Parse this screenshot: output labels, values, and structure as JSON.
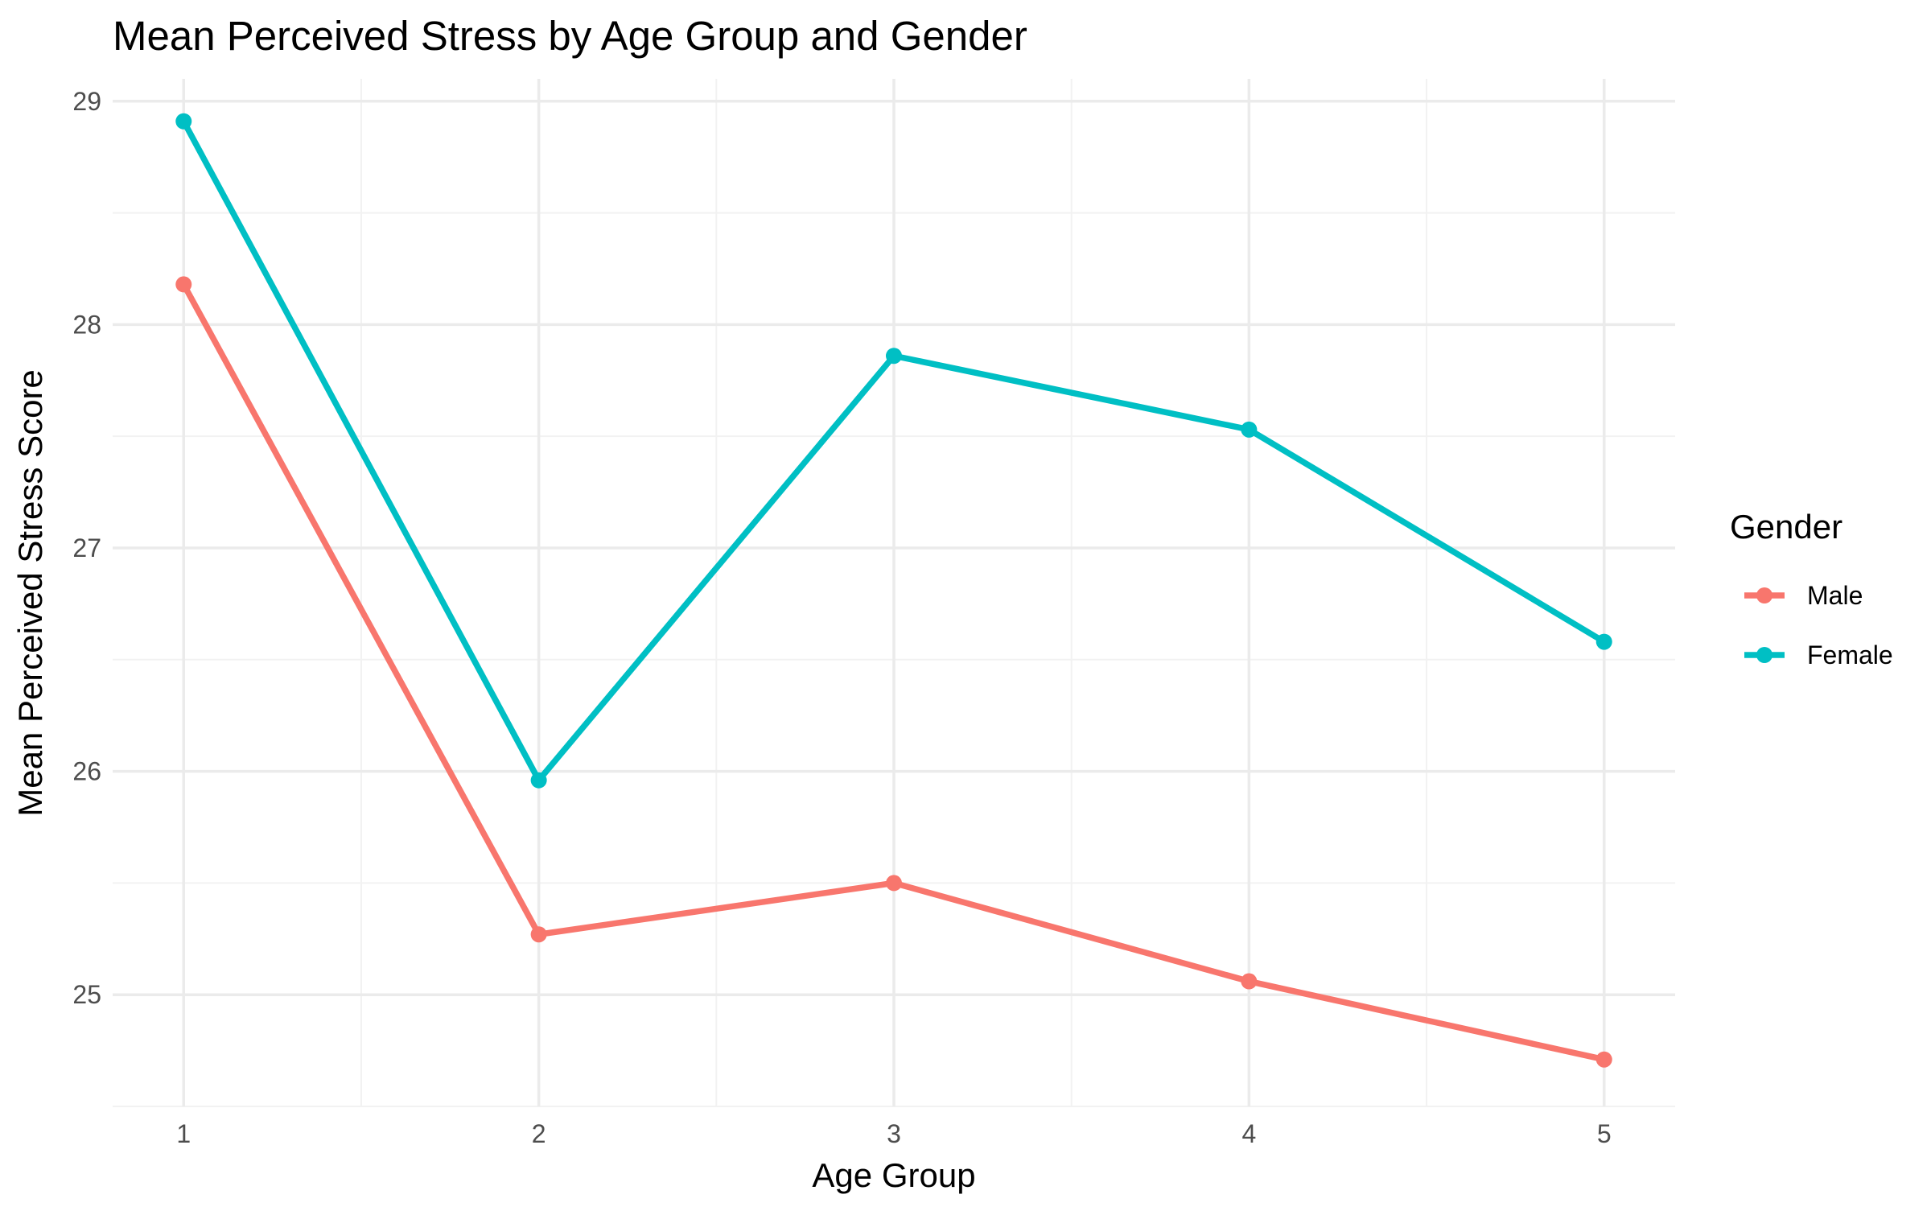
{
  "chart_data": {
    "type": "line",
    "title": "Mean Perceived Stress by Age Group and Gender",
    "xlabel": "Age Group",
    "ylabel": "Mean Perceived Stress Score",
    "x": [
      1,
      2,
      3,
      4,
      5
    ],
    "x_tick_labels": [
      "1",
      "2",
      "3",
      "4",
      "5"
    ],
    "y_ticks": [
      25,
      26,
      27,
      28,
      29
    ],
    "y_tick_labels": [
      "25",
      "26",
      "27",
      "28",
      "29"
    ],
    "xlim": [
      0.8,
      5.2
    ],
    "ylim": [
      24.5,
      29.1
    ],
    "grid": true,
    "legend": {
      "title": "Gender",
      "position": "right"
    },
    "series": [
      {
        "name": "Male",
        "color": "#F8766D",
        "values": [
          28.18,
          25.27,
          25.5,
          25.06,
          24.71
        ]
      },
      {
        "name": "Female",
        "color": "#00BFC4",
        "values": [
          28.91,
          25.96,
          27.86,
          27.53,
          26.58
        ]
      }
    ]
  }
}
